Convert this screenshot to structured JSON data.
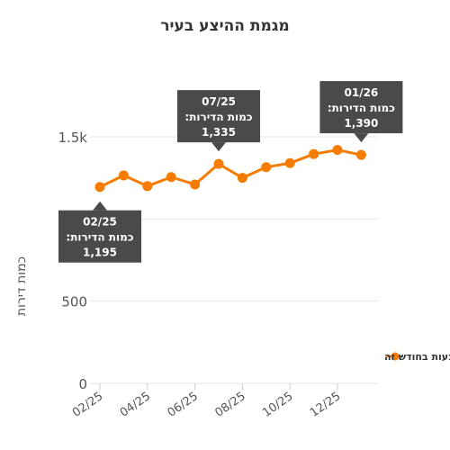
{
  "chart_data": {
    "type": "line",
    "title": "מגמת ההיצע בעיר",
    "ylabel": "כמות דירות",
    "xlabel": "",
    "x": [
      "02/25",
      "03/25",
      "04/25",
      "05/25",
      "06/25",
      "07/25",
      "08/25",
      "09/25",
      "10/25",
      "11/25",
      "12/25",
      "01/26"
    ],
    "x_tick_labels": [
      "02/25",
      "04/25",
      "06/25",
      "08/25",
      "10/25",
      "12/25"
    ],
    "y_tick_values": [
      0,
      500,
      1000,
      1500
    ],
    "y_tick_labels": [
      "0",
      "500",
      "",
      "1.5k"
    ],
    "ylim": [
      0,
      1700
    ],
    "grid": true,
    "legend_position": "right",
    "series": [
      {
        "name": "כמות הדירות המוצעות בחודש זה",
        "color": "#f57c00",
        "values": [
          1195,
          1265,
          1200,
          1255,
          1210,
          1335,
          1250,
          1315,
          1340,
          1395,
          1420,
          1390
        ]
      }
    ],
    "annotations": [
      {
        "index": 0,
        "line1": "02/25",
        "line2": "כמות הדירות:",
        "line3": "1,195",
        "placement": "below"
      },
      {
        "index": 5,
        "line1": "07/25",
        "line2": "כמות הדירות:",
        "line3": "1,335",
        "placement": "above"
      },
      {
        "index": 11,
        "line1": "01/26",
        "line2": "כמות הדירות:",
        "line3": "1,390",
        "placement": "above"
      }
    ]
  }
}
